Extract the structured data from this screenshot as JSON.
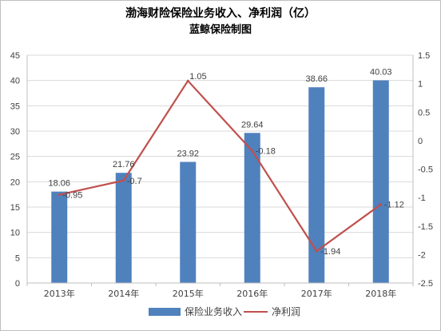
{
  "chart_data": {
    "type": "bar",
    "title": "渤海财险保险业务收入、净利润（亿）",
    "subtitle": "蓝鲸保险制图",
    "categories": [
      "2013年",
      "2014年",
      "2015年",
      "2016年",
      "2017年",
      "2018年"
    ],
    "series": [
      {
        "name": "保险业务收入",
        "type": "bar",
        "axis": "left",
        "color": "#4f81bd",
        "values": [
          18.06,
          21.76,
          23.92,
          29.64,
          38.66,
          40.03
        ],
        "labels": [
          "18.06",
          "21.76",
          "23.92",
          "29.64",
          "38.66",
          "40.03"
        ]
      },
      {
        "name": "净利润",
        "type": "line",
        "axis": "right",
        "color": "#c0504d",
        "values": [
          -0.95,
          -0.7,
          1.05,
          -0.18,
          -1.94,
          -1.12
        ],
        "labels": [
          "-0.95",
          "-0.7",
          "1.05",
          "-0.18",
          "-1.94",
          "-1.12"
        ]
      }
    ],
    "y_left": {
      "ylim": [
        0,
        45
      ],
      "ticks": [
        "0",
        "5",
        "10",
        "15",
        "20",
        "25",
        "30",
        "35",
        "40",
        "45"
      ]
    },
    "y_right": {
      "ylim": [
        -2.5,
        1.5
      ],
      "ticks": [
        "1.5",
        "1",
        "0.5",
        "0",
        "-0.5",
        "-1",
        "-1.5",
        "-2",
        "-2.5"
      ]
    },
    "grid": true,
    "legend": "bottom"
  }
}
